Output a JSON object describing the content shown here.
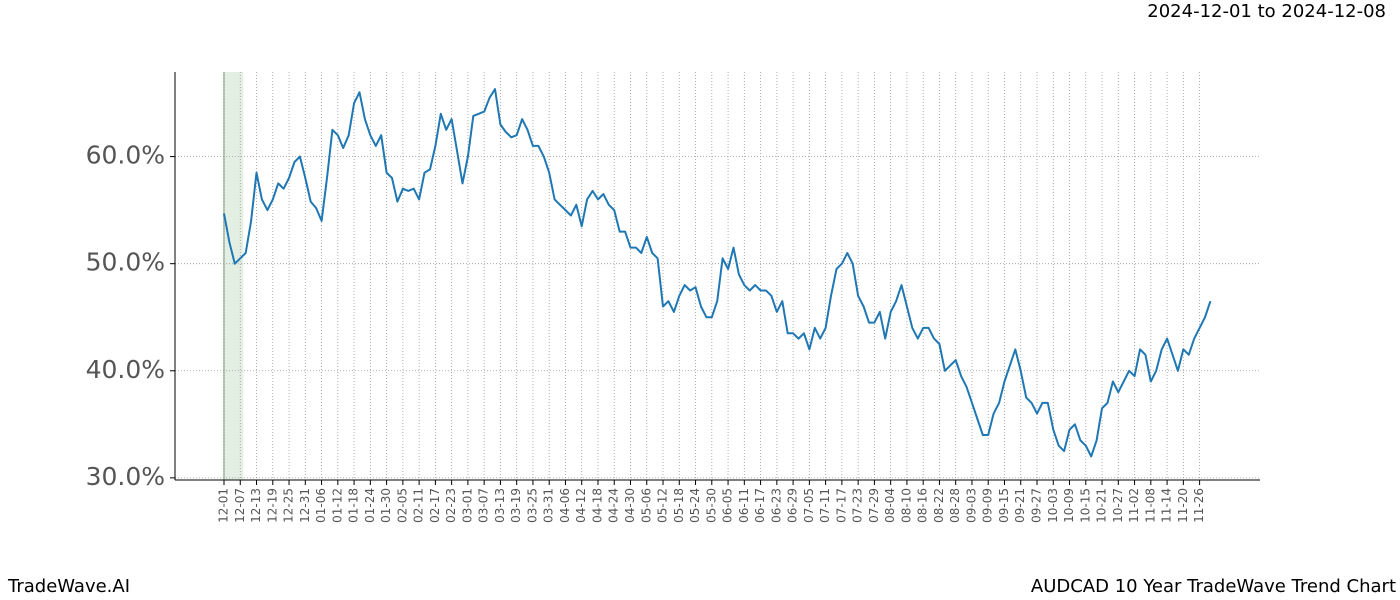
{
  "chart_data": {
    "type": "line",
    "date_range": "2024-12-01 to 2024-12-08",
    "brand": "TradeWave.AI",
    "title": "AUDCAD 10 Year TradeWave Trend Chart",
    "categories": [
      "12-01",
      null,
      null,
      "12-07",
      null,
      null,
      "12-13",
      null,
      null,
      "12-19",
      null,
      null,
      "12-25",
      null,
      null,
      "12-31",
      null,
      null,
      "01-06",
      null,
      null,
      "01-12",
      null,
      null,
      "01-18",
      null,
      null,
      "01-24",
      null,
      null,
      "01-30",
      null,
      null,
      "02-05",
      null,
      null,
      "02-11",
      null,
      null,
      "02-17",
      null,
      null,
      "02-23",
      null,
      null,
      "03-01",
      null,
      null,
      "03-07",
      null,
      null,
      "03-13",
      null,
      null,
      "03-19",
      null,
      null,
      "03-25",
      null,
      null,
      "03-31",
      null,
      null,
      "04-06",
      null,
      null,
      "04-12",
      null,
      null,
      "04-18",
      null,
      null,
      "04-24",
      null,
      null,
      "04-30",
      null,
      null,
      "05-06",
      null,
      null,
      "05-12",
      null,
      null,
      "05-18",
      null,
      null,
      "05-24",
      null,
      null,
      "05-30",
      null,
      null,
      "06-05",
      null,
      null,
      "06-11",
      null,
      null,
      "06-17",
      null,
      null,
      "06-23",
      null,
      null,
      "06-29",
      null,
      null,
      "07-05",
      null,
      null,
      "07-11",
      null,
      null,
      "07-17",
      null,
      null,
      "07-23",
      null,
      null,
      "07-29",
      null,
      null,
      "08-04",
      null,
      null,
      "08-10",
      null,
      null,
      "08-16",
      null,
      null,
      "08-22",
      null,
      null,
      "08-28",
      null,
      null,
      "09-03",
      null,
      null,
      "09-09",
      null,
      null,
      "09-15",
      null,
      null,
      "09-21",
      null,
      null,
      "09-27",
      null,
      null,
      "10-03",
      null,
      null,
      "10-09",
      null,
      null,
      "10-15",
      null,
      null,
      "10-21",
      null,
      null,
      "10-27",
      null,
      null,
      "11-02",
      null,
      null,
      "11-08",
      null,
      null,
      "11-14",
      null,
      null,
      "11-20",
      null,
      null,
      "11-26",
      null,
      null
    ],
    "series": [
      {
        "color": "#1f77b4",
        "values": [
          54.7,
          52,
          50,
          50.5,
          51,
          54,
          58.5,
          56,
          55,
          56,
          57.5,
          57,
          58,
          59.5,
          60,
          58,
          55.8,
          55.2,
          54,
          58,
          62.5,
          62,
          60.8,
          62,
          65,
          66,
          63.5,
          62,
          61,
          62,
          58.5,
          58,
          55.8,
          57,
          56.8,
          57,
          56,
          58.5,
          58.8,
          61,
          64,
          62.5,
          63.5,
          60.5,
          57.5,
          60,
          63.8,
          64,
          64.2,
          65.5,
          66.3,
          63,
          62.3,
          61.8,
          62,
          63.5,
          62.5,
          61,
          61,
          60,
          58.5,
          56,
          55.5,
          55,
          54.5,
          55.5,
          53.5,
          56,
          56.8,
          56,
          56.5,
          55.5,
          55,
          53,
          53,
          51.5,
          51.5,
          51,
          52.5,
          51,
          50.5,
          46,
          46.5,
          45.5,
          47,
          48,
          47.5,
          47.8,
          46,
          45,
          45,
          46.5,
          50.5,
          49.5,
          51.5,
          49,
          48,
          47.5,
          48,
          47.5,
          47.5,
          47,
          45.5,
          46.5,
          43.5,
          43.5,
          43,
          43.5,
          42,
          44,
          43,
          44,
          47,
          49.5,
          50,
          51,
          50,
          47,
          46,
          44.5,
          44.5,
          45.5,
          43,
          45.5,
          46.5,
          48,
          46,
          44,
          43,
          44,
          44,
          43,
          42.5,
          40,
          40.5,
          41,
          39.5,
          38.5,
          37,
          35.5,
          34,
          34,
          36,
          37,
          39,
          40.5,
          42,
          40,
          37.5,
          37,
          36,
          37,
          37,
          34.5,
          33,
          32.5,
          34.5,
          35,
          33.5,
          33,
          32,
          33.5,
          36.5,
          37,
          39,
          38,
          39,
          40,
          39.5,
          42,
          41.5,
          39,
          40,
          42,
          43,
          41.5,
          40,
          42,
          41.5,
          43,
          44,
          45,
          46.5
        ]
      }
    ],
    "ylim": [
      29.8,
      67.9
    ],
    "yticks": [
      {
        "value": 30,
        "label": "30.0%"
      },
      {
        "value": 40,
        "label": "40.0%"
      },
      {
        "value": 50,
        "label": "50.0%"
      },
      {
        "value": 60,
        "label": "60.0%"
      }
    ],
    "grid": true
  }
}
